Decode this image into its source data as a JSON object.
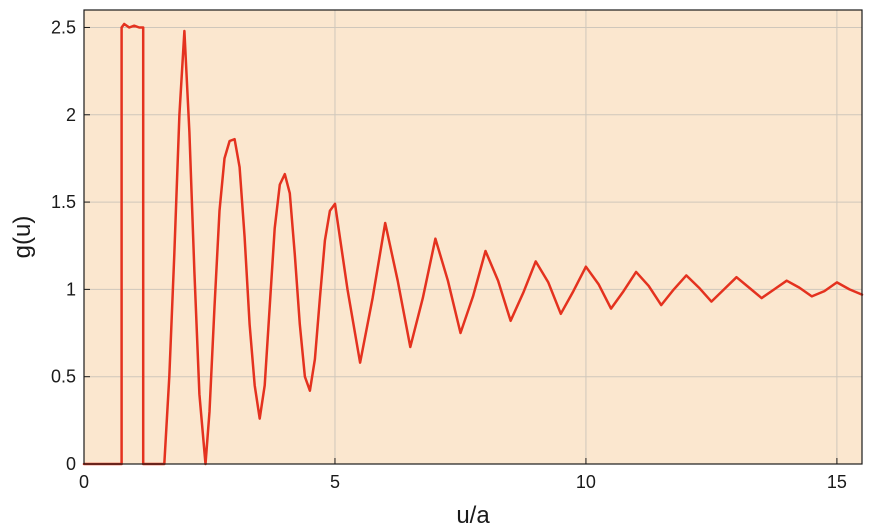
{
  "colors": {
    "plot_background": "#fbe7cf",
    "grid": "#cfc7bb",
    "frame": "#1a1a1a",
    "series": "#e4321f"
  },
  "chart_data": {
    "type": "line",
    "title": "",
    "xlabel": "u/a",
    "ylabel": "g(u)",
    "xlim": [
      0,
      15.5
    ],
    "ylim": [
      0,
      2.6
    ],
    "xticks": [
      0,
      5,
      10,
      15
    ],
    "yticks": [
      0,
      0.5,
      1,
      1.5,
      2,
      2.5
    ],
    "xtick_labels": [
      "0",
      "5",
      "10",
      "15"
    ],
    "ytick_labels": [
      "0",
      "0.5",
      "1",
      "1.5",
      "2",
      "2.5"
    ],
    "grid": true,
    "legend": "none",
    "series": [
      {
        "name": "g(u)",
        "x": [
          0,
          0.75,
          0.75,
          0.8,
          0.9,
          1.0,
          1.1,
          1.18,
          1.18,
          1.6,
          1.7,
          1.8,
          1.9,
          2.0,
          2.1,
          2.2,
          2.3,
          2.42,
          2.5,
          2.6,
          2.7,
          2.8,
          2.9,
          3.0,
          3.1,
          3.2,
          3.3,
          3.4,
          3.5,
          3.6,
          3.7,
          3.8,
          3.9,
          4.0,
          4.1,
          4.2,
          4.3,
          4.4,
          4.5,
          4.6,
          4.7,
          4.8,
          4.9,
          5.0,
          5.25,
          5.5,
          5.75,
          6.0,
          6.25,
          6.5,
          6.75,
          7.0,
          7.25,
          7.5,
          7.75,
          8.0,
          8.25,
          8.5,
          8.75,
          9.0,
          9.25,
          9.5,
          9.75,
          10.0,
          10.25,
          10.5,
          10.75,
          11.0,
          11.25,
          11.5,
          11.75,
          12.0,
          12.25,
          12.5,
          12.75,
          13.0,
          13.25,
          13.5,
          13.75,
          14.0,
          14.25,
          14.5,
          14.75,
          15.0,
          15.25,
          15.5
        ],
        "values": [
          0,
          0,
          2.5,
          2.52,
          2.5,
          2.51,
          2.5,
          2.5,
          0,
          0,
          0.5,
          1.2,
          2.0,
          2.48,
          1.9,
          1.1,
          0.4,
          0.0,
          0.3,
          0.9,
          1.45,
          1.75,
          1.85,
          1.86,
          1.7,
          1.3,
          0.8,
          0.45,
          0.26,
          0.45,
          0.9,
          1.35,
          1.6,
          1.66,
          1.55,
          1.2,
          0.8,
          0.5,
          0.42,
          0.6,
          0.95,
          1.28,
          1.45,
          1.49,
          1.0,
          0.58,
          0.95,
          1.38,
          1.05,
          0.67,
          0.95,
          1.29,
          1.05,
          0.75,
          0.96,
          1.22,
          1.05,
          0.82,
          0.98,
          1.16,
          1.04,
          0.86,
          0.99,
          1.13,
          1.03,
          0.89,
          0.99,
          1.1,
          1.02,
          0.91,
          1.0,
          1.08,
          1.01,
          0.93,
          1.0,
          1.07,
          1.01,
          0.95,
          1.0,
          1.05,
          1.01,
          0.96,
          0.99,
          1.04,
          1.0,
          0.97
        ]
      }
    ]
  }
}
